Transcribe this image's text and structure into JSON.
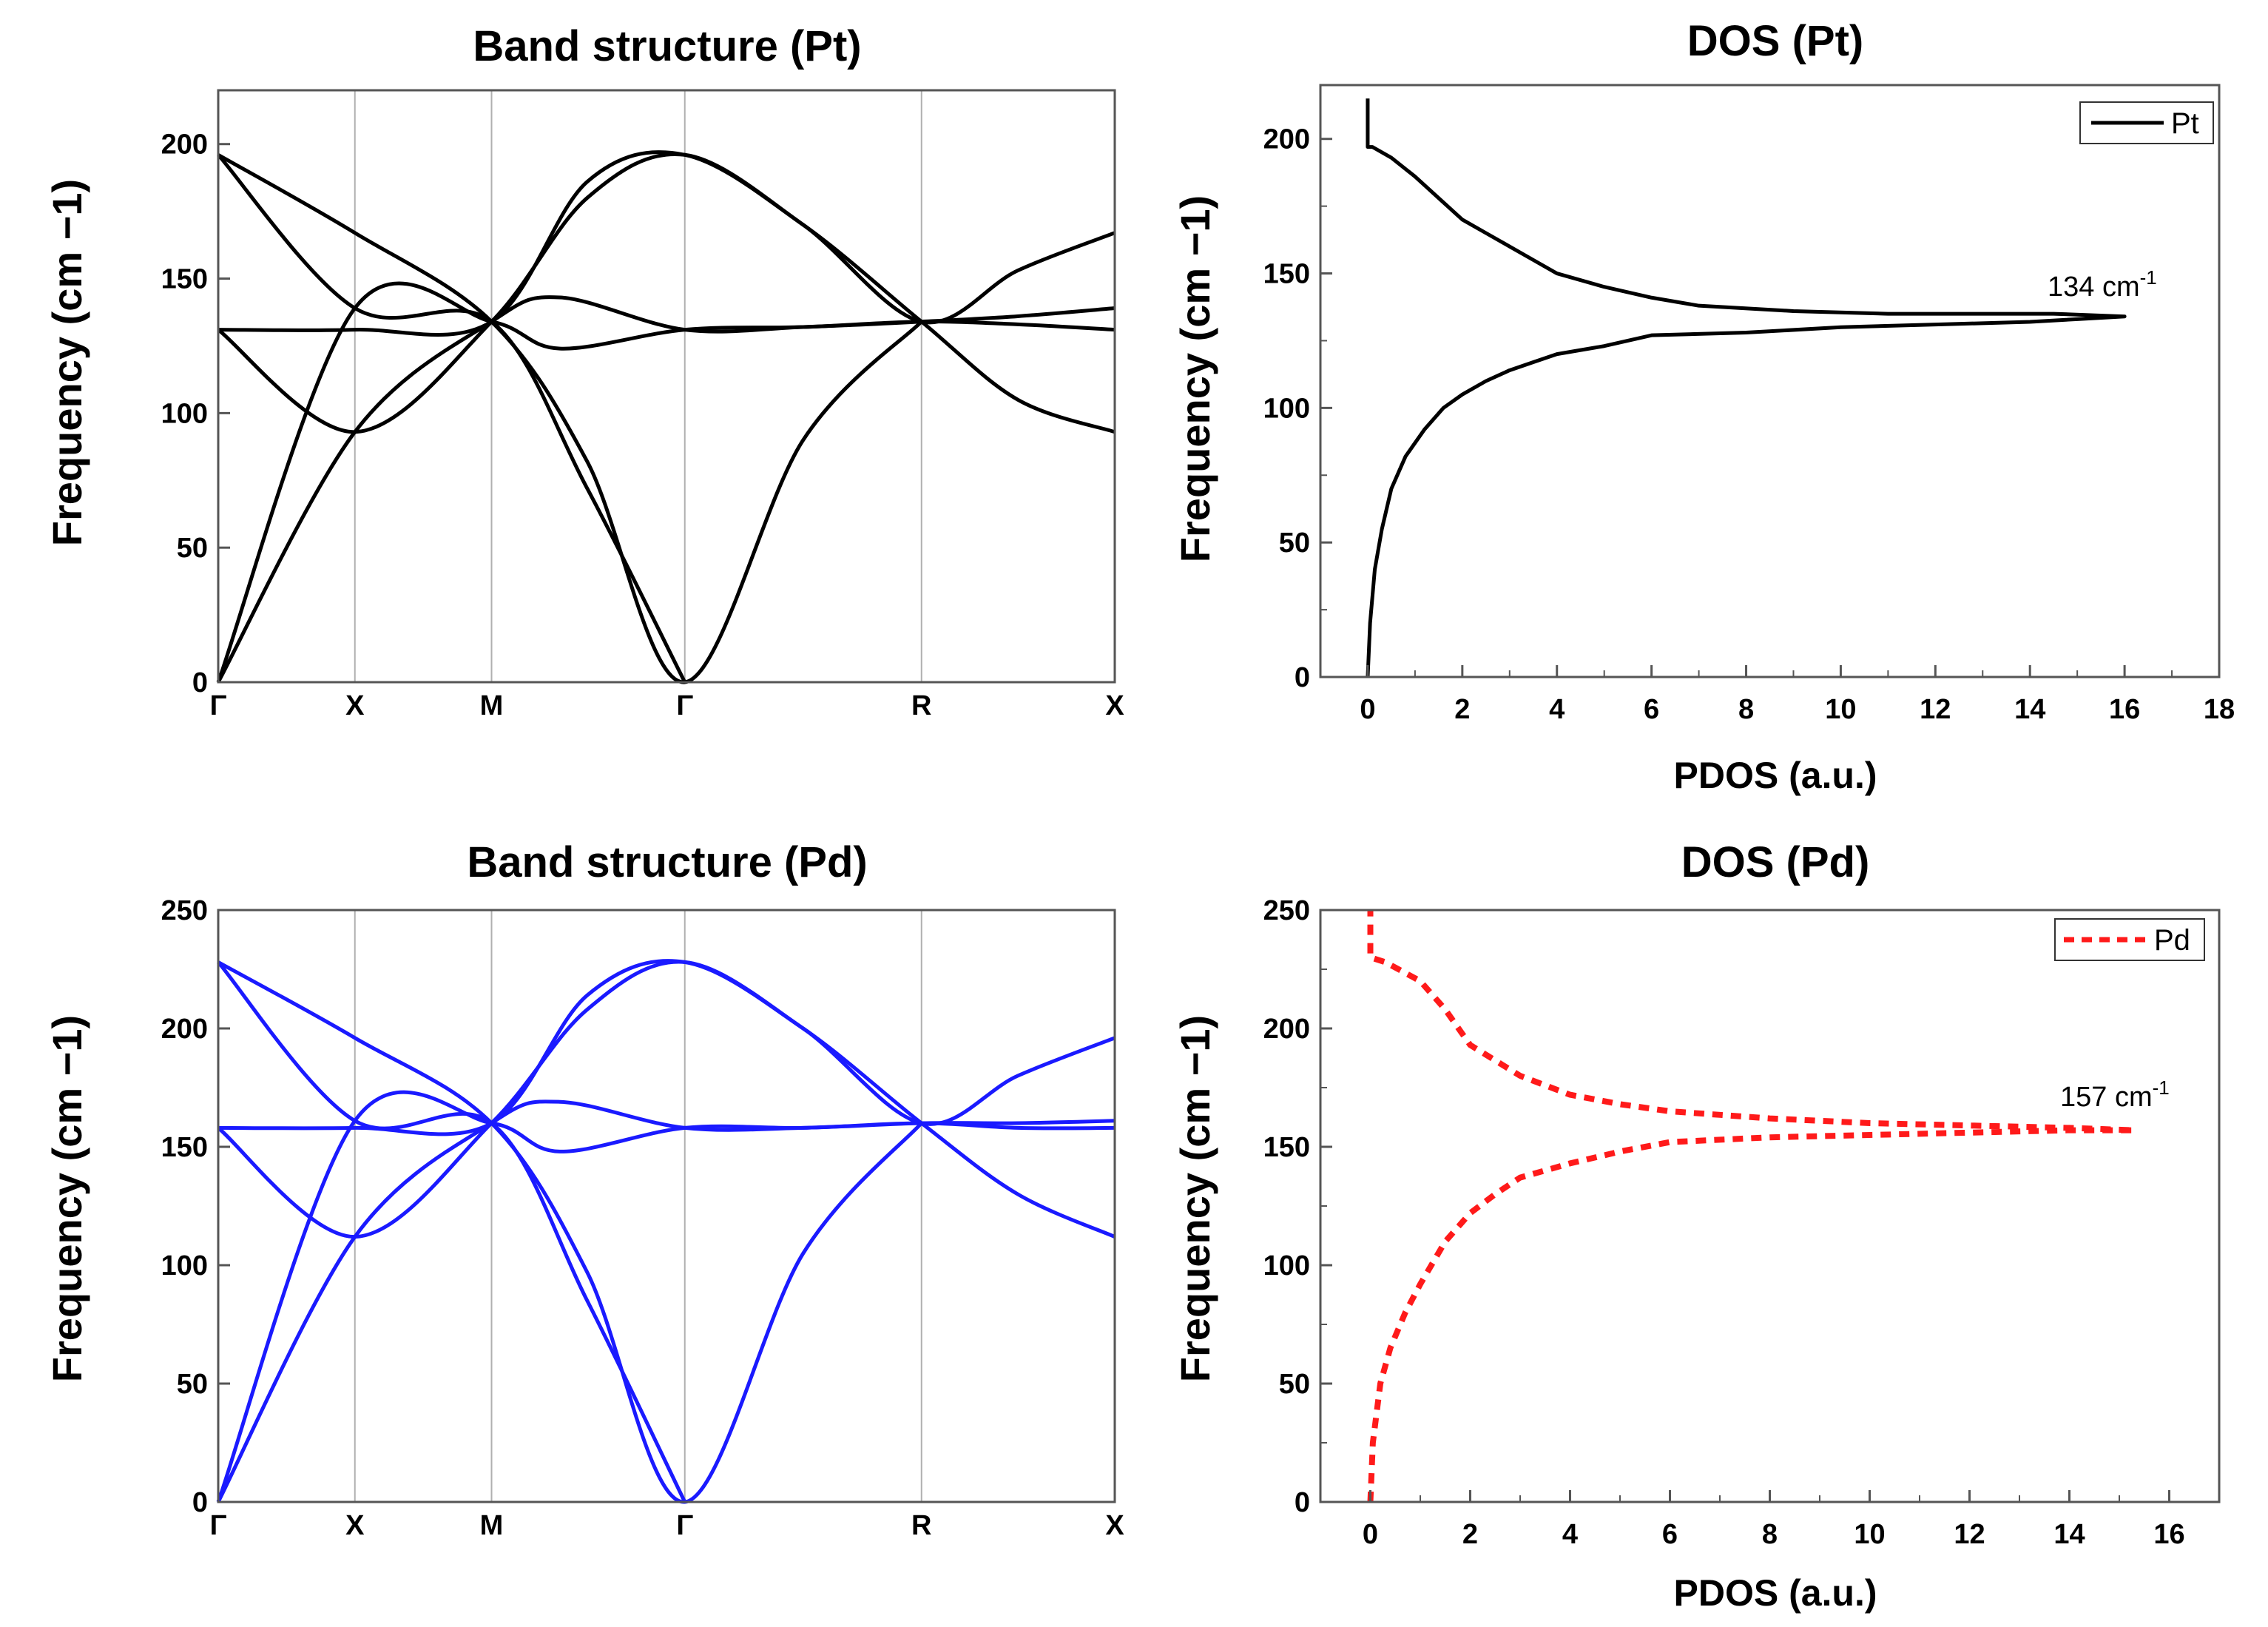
{
  "chart_data": [
    {
      "id": "band-pt",
      "type": "line",
      "title": "Band structure (Pt)",
      "xlabel": "",
      "ylabel": "Frequency (cm −1)",
      "ylim": [
        0,
        220
      ],
      "yticks": [
        0,
        50,
        100,
        150,
        200
      ],
      "color": "#000000",
      "kpoints": [
        {
          "label": "Γ",
          "pos": 0
        },
        {
          "label": "X",
          "pos": 1
        },
        {
          "label": "M",
          "pos": 2
        },
        {
          "label": "Γ",
          "pos": 3.414
        },
        {
          "label": "R",
          "pos": 5.146
        },
        {
          "label": "X",
          "pos": 6.56
        }
      ],
      "series": [
        {
          "name": "branch-1",
          "x": [
            0,
            1,
            2,
            2.5,
            3.414,
            4.28,
            5.146,
            5.85,
            6.56
          ],
          "y": [
            0,
            93,
            134,
            143,
            131,
            132,
            134,
            136,
            139
          ]
        },
        {
          "name": "branch-2",
          "x": [
            0,
            1,
            2,
            2.5,
            3.414,
            4.28,
            5.146,
            5.85,
            6.56
          ],
          "y": [
            0,
            139,
            134,
            124,
            131,
            132,
            134,
            133,
            131
          ]
        },
        {
          "name": "branch-3",
          "x": [
            0,
            1,
            2,
            2.7,
            3.414,
            4.28,
            5.146,
            5.85,
            6.56
          ],
          "y": [
            131,
            93,
            134,
            180,
            196,
            170,
            134,
            105,
            93
          ]
        },
        {
          "name": "branch-4",
          "x": [
            0,
            1,
            2,
            2.7,
            3.414,
            4.28,
            5.146,
            5.85,
            6.56
          ],
          "y": [
            131,
            131,
            134,
            186,
            196,
            170,
            134,
            153,
            167
          ]
        },
        {
          "name": "branch-5",
          "x": [
            0,
            1,
            2,
            2.7,
            3.414,
            4.28,
            5.146
          ],
          "y": [
            196,
            167,
            134,
            82,
            0,
            90,
            134
          ]
        },
        {
          "name": "branch-6",
          "x": [
            0,
            1,
            2,
            2.7,
            3.414
          ],
          "y": [
            196,
            139,
            134,
            72,
            0
          ]
        }
      ]
    },
    {
      "id": "dos-pt",
      "type": "line",
      "title": "DOS (Pt)",
      "xlabel": "PDOS (a.u.)",
      "ylabel": "Frequency (cm −1)",
      "xlim": [
        -1,
        18
      ],
      "ylim": [
        0,
        220
      ],
      "xticks": [
        0,
        2,
        4,
        6,
        8,
        10,
        12,
        14,
        16,
        18
      ],
      "yticks": [
        0,
        50,
        100,
        150,
        200
      ],
      "color": "#000000",
      "dashed": false,
      "legend": "Pt",
      "annotation": {
        "text": "134 cm",
        "sup": "-1",
        "x": 14.1,
        "y": 138
      },
      "series": [
        {
          "name": "Pt",
          "x": [
            0,
            0.05,
            0.15,
            0.3,
            0.5,
            0.8,
            1.2,
            1.6,
            2.0,
            2.5,
            3.0,
            3.5,
            4.0,
            5.0,
            6.0,
            8.0,
            10.0,
            12.0,
            14.0,
            15.0,
            16.0,
            14.5,
            11.0,
            9.0,
            7.0,
            6.0,
            5.0,
            4.0,
            3.5,
            3.0,
            2.5,
            2.0,
            1.5,
            1.0,
            0.5,
            0.1,
            0,
            0
          ],
          "y": [
            0,
            20,
            40,
            55,
            70,
            82,
            92,
            100,
            105,
            110,
            114,
            117,
            120,
            123,
            127,
            128,
            130,
            131,
            132,
            133,
            134,
            135,
            135,
            136,
            138,
            141,
            145,
            150,
            155,
            160,
            165,
            170,
            178,
            186,
            193,
            197,
            197,
            215
          ]
        }
      ]
    },
    {
      "id": "band-pd",
      "type": "line",
      "title": "Band structure (Pd)",
      "xlabel": "",
      "ylabel": "Frequency (cm −1)",
      "ylim": [
        0,
        250
      ],
      "yticks": [
        0,
        50,
        100,
        150,
        200,
        250
      ],
      "color": "#1a1aff",
      "kpoints": [
        {
          "label": "Γ",
          "pos": 0
        },
        {
          "label": "X",
          "pos": 1
        },
        {
          "label": "M",
          "pos": 2
        },
        {
          "label": "Γ",
          "pos": 3.414
        },
        {
          "label": "R",
          "pos": 5.146
        },
        {
          "label": "X",
          "pos": 6.56
        }
      ],
      "series": [
        {
          "name": "branch-1",
          "x": [
            0,
            1,
            2,
            2.5,
            3.414,
            4.28,
            5.146,
            5.85,
            6.56
          ],
          "y": [
            0,
            112,
            160,
            169,
            158,
            158,
            160,
            160,
            161
          ]
        },
        {
          "name": "branch-2",
          "x": [
            0,
            1,
            2,
            2.5,
            3.414,
            4.28,
            5.146,
            5.85,
            6.56
          ],
          "y": [
            0,
            161,
            160,
            148,
            158,
            158,
            160,
            158,
            158
          ]
        },
        {
          "name": "branch-3",
          "x": [
            0,
            1,
            2,
            2.7,
            3.414,
            4.28,
            5.146,
            5.85,
            6.56
          ],
          "y": [
            158,
            112,
            160,
            208,
            228,
            200,
            160,
            130,
            112
          ]
        },
        {
          "name": "branch-4",
          "x": [
            0,
            1,
            2,
            2.7,
            3.414,
            4.28,
            5.146,
            5.85,
            6.56
          ],
          "y": [
            158,
            158,
            160,
            214,
            228,
            200,
            160,
            180,
            196
          ]
        },
        {
          "name": "branch-5",
          "x": [
            0,
            1,
            2,
            2.7,
            3.414,
            4.28,
            5.146
          ],
          "y": [
            228,
            196,
            160,
            97,
            0,
            105,
            160
          ]
        },
        {
          "name": "branch-6",
          "x": [
            0,
            1,
            2,
            2.7,
            3.414
          ],
          "y": [
            228,
            161,
            160,
            85,
            0
          ]
        }
      ]
    },
    {
      "id": "dos-pd",
      "type": "line",
      "title": "DOS (Pd)",
      "xlabel": "PDOS (a.u.)",
      "ylabel": "Frequency (cm −1)",
      "xlim": [
        -1,
        17
      ],
      "ylim": [
        0,
        250
      ],
      "xticks": [
        0,
        2,
        4,
        6,
        8,
        10,
        12,
        14,
        16
      ],
      "yticks": [
        0,
        50,
        100,
        150,
        200,
        250
      ],
      "color": "#ff1a1a",
      "dashed": true,
      "legend": "Pd",
      "annotation": {
        "text": "157 cm",
        "sup": "-1",
        "x": 13.9,
        "y": 161
      },
      "series": [
        {
          "name": "Pd",
          "x": [
            0,
            0.05,
            0.2,
            0.4,
            0.7,
            1.0,
            1.5,
            2.0,
            2.5,
            3.0,
            4.0,
            5.0,
            6.0,
            8.0,
            10.0,
            12.0,
            14.0,
            15.3,
            14.0,
            12.0,
            10.0,
            8.0,
            6.0,
            5.0,
            4.0,
            3.0,
            2.0,
            1.5,
            1.0,
            0.3,
            0,
            0
          ],
          "y": [
            0,
            25,
            50,
            65,
            80,
            92,
            110,
            122,
            130,
            137,
            143,
            148,
            152,
            154,
            155,
            156,
            157,
            157,
            158,
            159,
            160,
            162,
            165,
            168,
            172,
            180,
            193,
            208,
            220,
            228,
            230,
            250
          ]
        }
      ]
    }
  ]
}
